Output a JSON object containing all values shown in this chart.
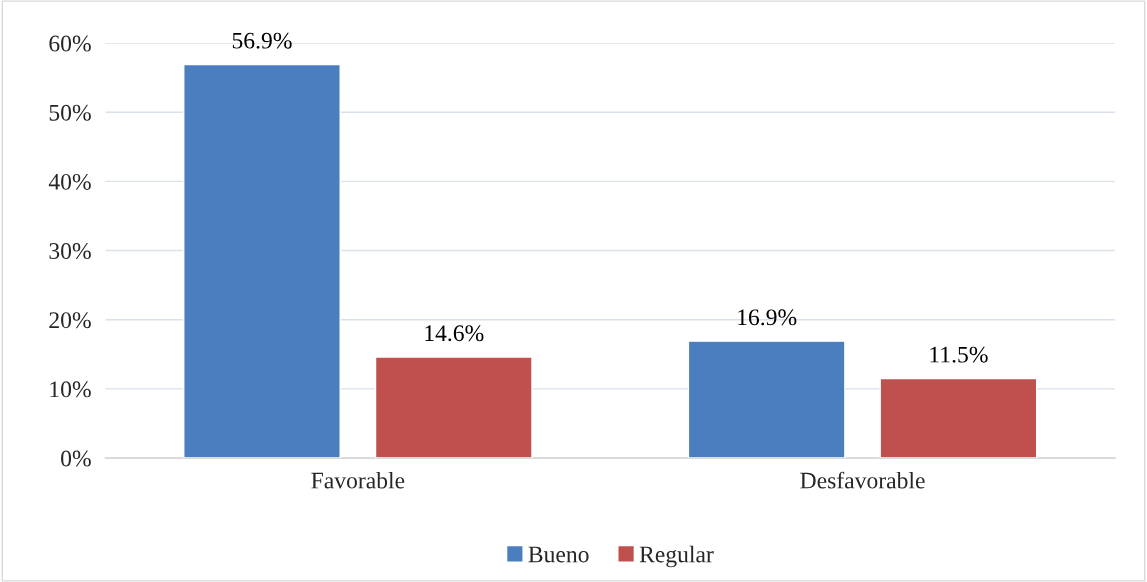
{
  "chart_data": {
    "type": "bar",
    "categories": [
      "Favorable",
      "Desfavorable"
    ],
    "series": [
      {
        "name": "Bueno",
        "color": "#4a7ebf",
        "values": [
          56.9,
          16.9
        ],
        "value_labels": [
          "56.9%",
          "16.9%"
        ]
      },
      {
        "name": "Regular",
        "color": "#c0504d",
        "values": [
          14.6,
          11.5
        ],
        "value_labels": [
          "14.6%",
          "11.5%"
        ]
      }
    ],
    "ylim": [
      0,
      60
    ],
    "yticks": [
      {
        "value": 0,
        "label": "0%"
      },
      {
        "value": 10,
        "label": "10%"
      },
      {
        "value": 20,
        "label": "20%"
      },
      {
        "value": 30,
        "label": "30%"
      },
      {
        "value": 40,
        "label": "40%"
      },
      {
        "value": 50,
        "label": "50%"
      },
      {
        "value": 60,
        "label": "60%"
      }
    ],
    "grid": "y",
    "legend": "bottom"
  }
}
